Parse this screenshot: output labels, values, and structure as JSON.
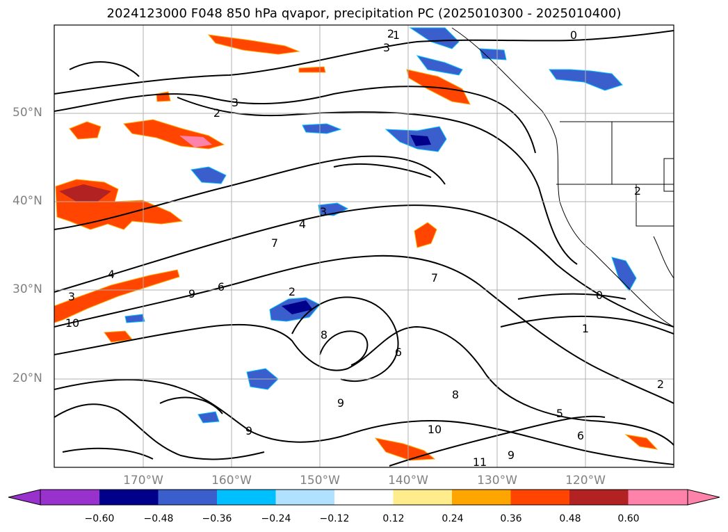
{
  "title": "2024123000 F048 850 hPa qvapor, precipitation PC (2025010300 - 2025010400)",
  "lat_labels": [
    "50°N",
    "40°N",
    "30°N",
    "20°N"
  ],
  "lon_labels": [
    "170°W",
    "160°W",
    "150°W",
    "140°W",
    "130°W",
    "120°W"
  ],
  "colorbar": {
    "ticks": [
      "−0.60",
      "−0.48",
      "−0.36",
      "−0.24",
      "−0.12",
      "0.12",
      "0.24",
      "0.36",
      "0.48",
      "0.60"
    ],
    "colors": [
      "#9932cc",
      "#00008b",
      "#3a5fcd",
      "#00bfff",
      "#b0e2ff",
      "#ffffff",
      "#ffec8b",
      "#ffa500",
      "#ff4500",
      "#b22222",
      "#ff82ab"
    ]
  },
  "contour_labels": [
    "1",
    "2",
    "3",
    "2",
    "3",
    "0",
    "3",
    "4",
    "7",
    "4",
    "3",
    "2",
    "9",
    "6",
    "10",
    "7",
    "0",
    "1",
    "2",
    "6",
    "8",
    "9",
    "8",
    "10",
    "9",
    "11",
    "5",
    "6",
    "9",
    "2"
  ],
  "colors": {
    "contour": "#000000",
    "coast": "#000000",
    "grid": "#b0b0b0"
  }
}
